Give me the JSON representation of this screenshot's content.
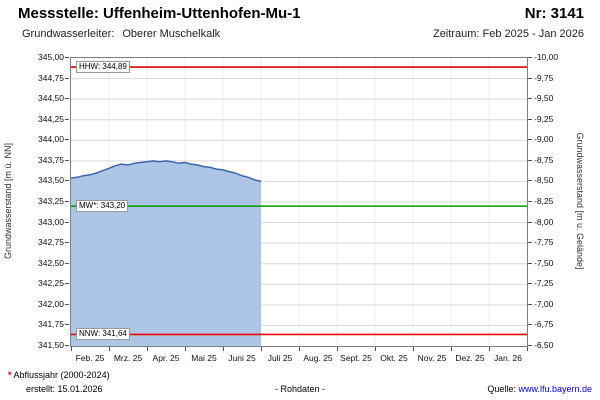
{
  "header": {
    "title": "Messstelle: Uffenheim-Uttenhofen-Mu-1",
    "station_no": "Nr: 3141",
    "aquifer_label": "Grundwasserleiter:",
    "aquifer_value": "Oberer Muschelkalk",
    "period": "Zeitraum: Feb 2025 - Jan 2026"
  },
  "chart_data": {
    "type": "area",
    "title": "",
    "ylabel_left": "Grundwasserstand [m ü. NN]",
    "ylabel_right": "Grundwasserstand [m u. Gelände]",
    "ylim_left": [
      341.5,
      345.0
    ],
    "ylim_right": [
      -10.0,
      -6.5
    ],
    "ytick_step": 0.25,
    "decimal_separator": ",",
    "grid": true,
    "x_months_range": [
      0,
      12
    ],
    "x_tick_labels": [
      "Feb. 25",
      "Mrz. 25",
      "Apr. 25",
      "Mai 25",
      "Juni 25",
      "Juli 25",
      "Aug. 25",
      "Sept. 25",
      "Okt. 25",
      "Nov. 25",
      "Dez. 25",
      "Jan. 26"
    ],
    "series": [
      {
        "name": "Grundwasserstand (Rohdaten)",
        "color": "#3a66ad",
        "fill": "#aec6e6",
        "x_month": [
          0.0,
          0.16,
          0.33,
          0.5,
          0.66,
          0.83,
          1.0,
          1.16,
          1.33,
          1.5,
          1.66,
          1.83,
          2.0,
          2.16,
          2.33,
          2.5,
          2.66,
          2.83,
          3.0,
          3.16,
          3.33,
          3.5,
          3.66,
          3.83,
          4.0,
          4.16,
          4.33,
          4.5,
          4.66,
          4.83,
          5.0
        ],
        "values": [
          343.54,
          343.55,
          343.57,
          343.58,
          343.6,
          343.63,
          343.66,
          343.69,
          343.71,
          343.7,
          343.72,
          343.73,
          343.74,
          343.75,
          343.74,
          343.75,
          343.74,
          343.72,
          343.73,
          343.71,
          343.7,
          343.68,
          343.67,
          343.65,
          343.64,
          343.62,
          343.6,
          343.57,
          343.55,
          343.52,
          343.5
        ]
      }
    ],
    "reference_lines": [
      {
        "id": "hhw",
        "label": "HHW: 344,89",
        "value": 344.89,
        "color": "#e60000"
      },
      {
        "id": "mw",
        "label": "MW*: 343,20",
        "value": 343.2,
        "color": "#009900"
      },
      {
        "id": "nnw",
        "label": "NNW: 341,64",
        "value": 341.64,
        "color": "#e60000"
      }
    ]
  },
  "footer": {
    "asterisk": "*",
    "note": " Abflussjahr (2000-2024)",
    "created": "erstellt: 15.01.2026",
    "center": "- Rohdaten -",
    "source_label": "Quelle: ",
    "source_link": "www.lfu.bayern.de"
  }
}
